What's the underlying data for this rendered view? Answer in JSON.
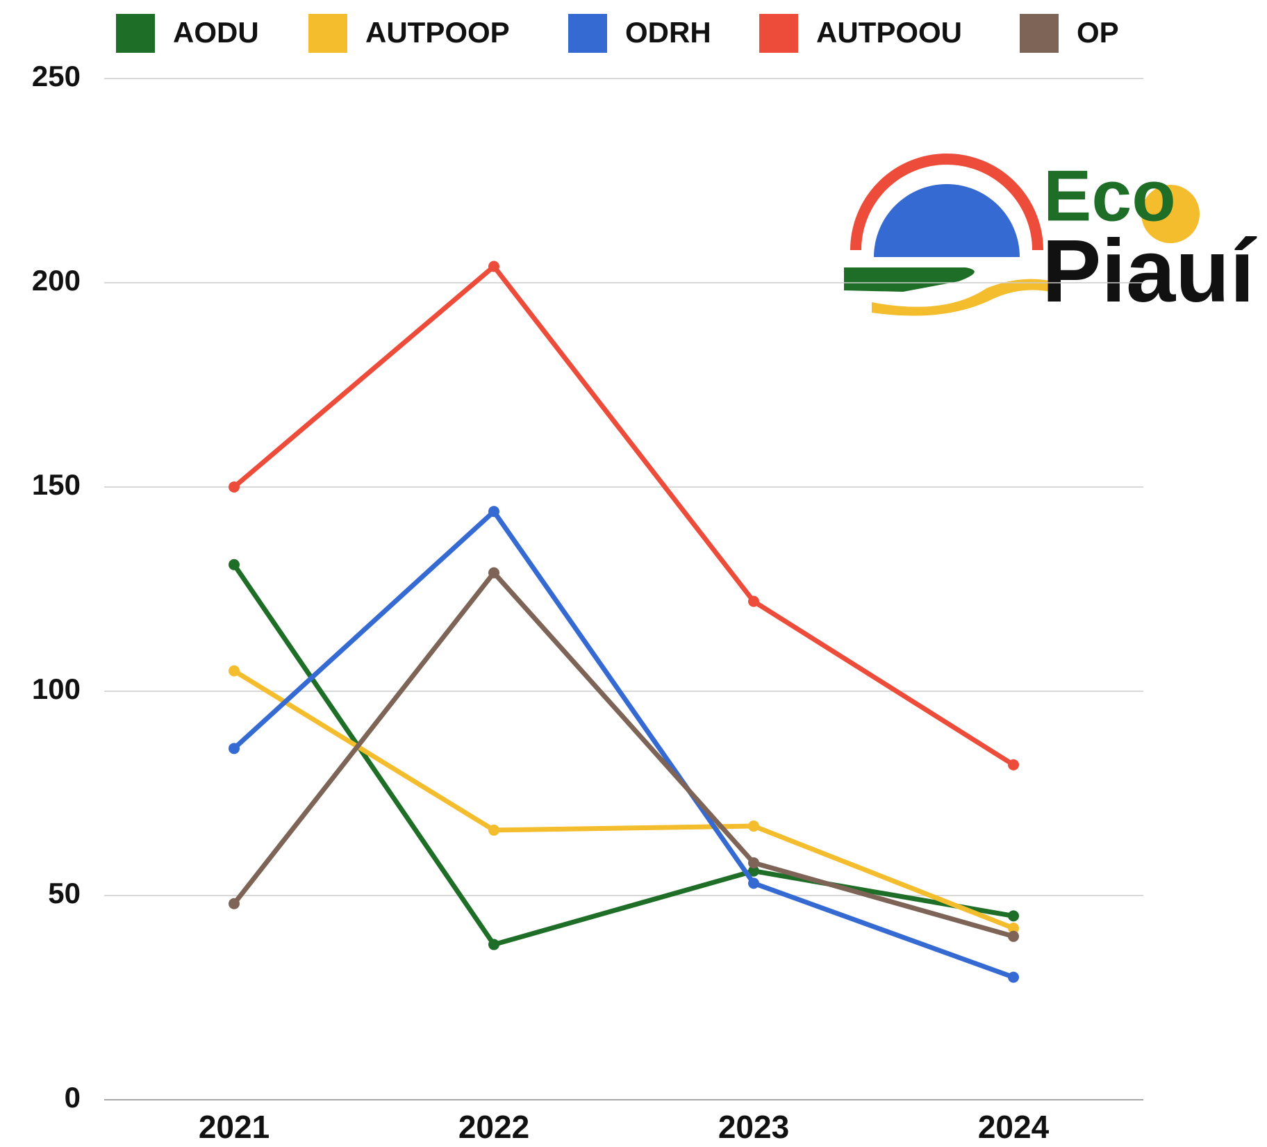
{
  "chart_data": {
    "type": "line",
    "categories": [
      "2021",
      "2022",
      "2023",
      "2024"
    ],
    "series": [
      {
        "name": "AODU",
        "color": "#1e6e27",
        "values": [
          131,
          38,
          56,
          45
        ]
      },
      {
        "name": "AUTPOOP",
        "color": "#f3bd2e",
        "values": [
          105,
          66,
          67,
          42
        ]
      },
      {
        "name": "ODRH",
        "color": "#356ad2",
        "values": [
          86,
          144,
          53,
          30
        ]
      },
      {
        "name": "AUTPOOU",
        "color": "#ec4c39",
        "values": [
          150,
          204,
          122,
          82
        ]
      },
      {
        "name": "OP",
        "color": "#7d6456",
        "values": [
          48,
          129,
          58,
          40
        ]
      }
    ],
    "ylim": [
      0,
      250
    ],
    "yticks": [
      0,
      50,
      100,
      150,
      200,
      250
    ],
    "grid": true,
    "legend": "top",
    "annotations": [
      "Eco",
      "Piauí"
    ]
  }
}
